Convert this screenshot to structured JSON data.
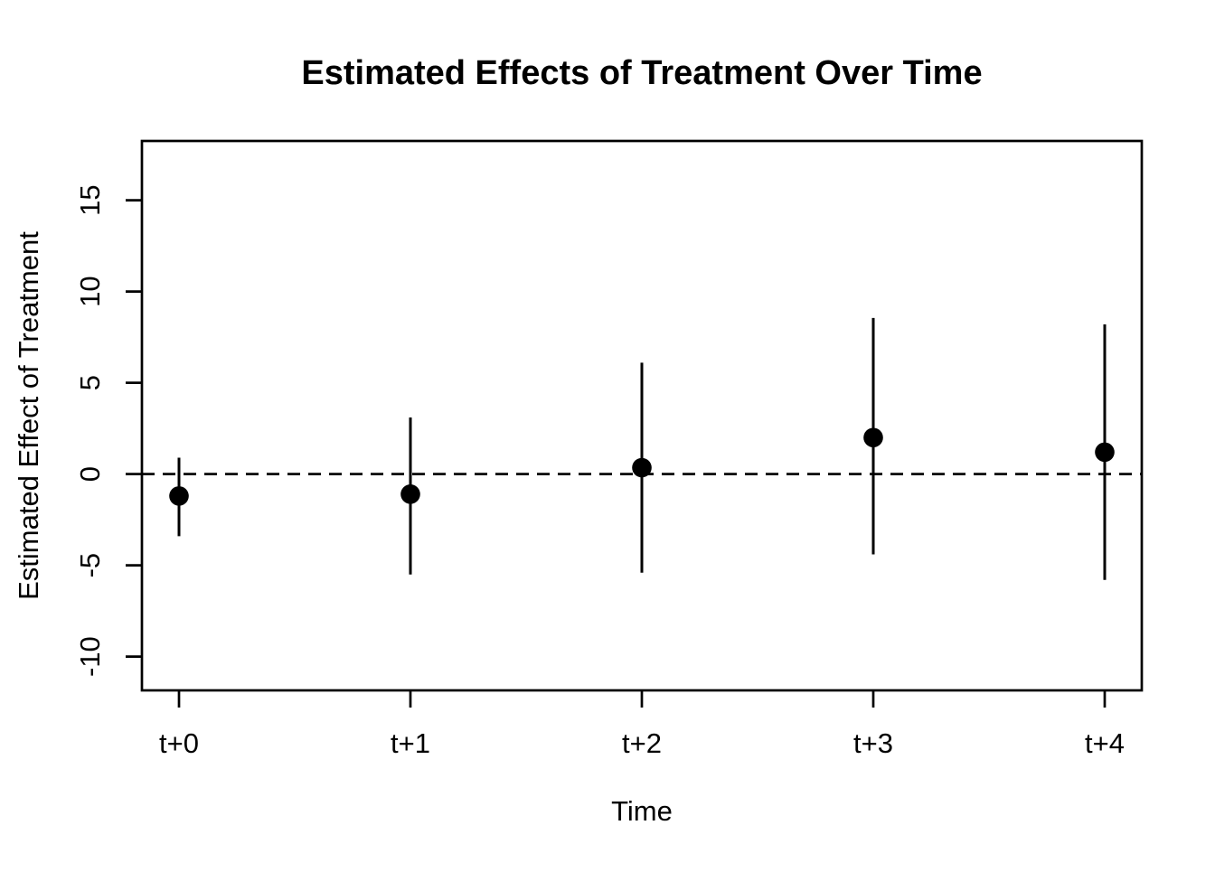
{
  "title": "Estimated Effects of Treatment Over Time",
  "chart_data": {
    "type": "scatter",
    "title": "Estimated Effects of Treatment Over Time",
    "xlabel": "Time",
    "ylabel": "Estimated Effect of Treatment",
    "categories": [
      "t+0",
      "t+1",
      "t+2",
      "t+3",
      "t+4"
    ],
    "series": [
      {
        "name": "estimate",
        "values": [
          -1.2,
          -1.1,
          0.35,
          2.0,
          1.2
        ]
      },
      {
        "name": "ci_lower",
        "values": [
          -3.4,
          -5.5,
          -5.4,
          -4.4,
          -5.8
        ]
      },
      {
        "name": "ci_upper",
        "values": [
          0.9,
          3.1,
          6.1,
          8.55,
          8.2
        ]
      }
    ],
    "y_ticks": [
      -10,
      -5,
      0,
      5,
      10,
      15
    ],
    "ylim": [
      -11.85,
      18.25
    ],
    "reference_line": {
      "y": 0,
      "style": "dashed"
    },
    "grid": false,
    "legend": false,
    "point_color": "#000000",
    "line_color": "#000000",
    "background": "#ffffff"
  }
}
